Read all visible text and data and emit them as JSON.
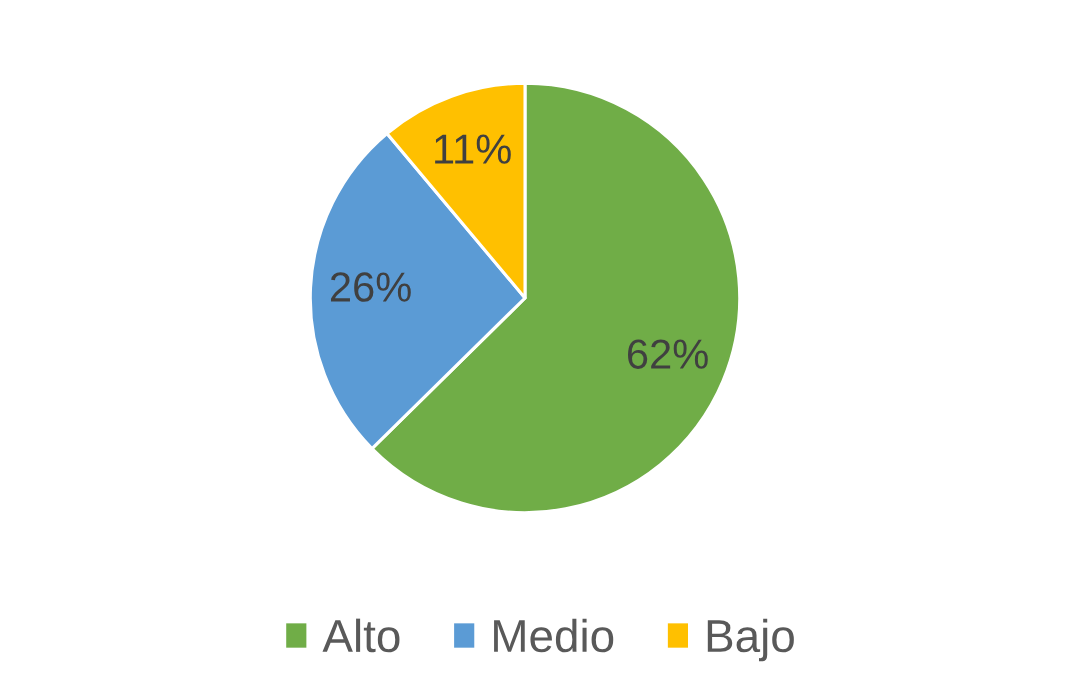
{
  "chart_data": {
    "type": "pie",
    "categories": [
      "Alto",
      "Medio",
      "Bajo"
    ],
    "values": [
      62,
      26,
      11
    ],
    "colors": [
      "#70ad47",
      "#5b9bd5",
      "#ffc000"
    ],
    "value_labels": [
      "62%",
      "26%",
      "11%"
    ],
    "legend": "bottom"
  }
}
